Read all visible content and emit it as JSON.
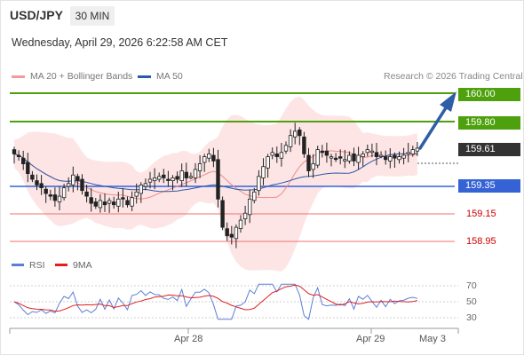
{
  "header": {
    "pair": "USD/JPY",
    "timeframe": "30 MIN",
    "timestamp": "Wednesday, April 29, 2026 6:22:58 AM CET"
  },
  "legend": {
    "ma20": "MA 20 + Bollinger Bands",
    "ma50": "MA 50",
    "credit": "Research © 2026 Trading Central"
  },
  "colors": {
    "bollinger_fill": "#fde0e0",
    "ma20": "#f08a8a",
    "ma50": "#2a5aa8",
    "resistance": "#4ea10c",
    "support_strong": "#3563d6",
    "support": "#f07272",
    "current": "#333333",
    "arrow": "#2e5ea5",
    "rsi": "#5b7ed6",
    "rsi_ma": "#e02020"
  },
  "levels": {
    "r2": "160.00",
    "r1": "159.80",
    "current": "159.61",
    "s1": "159.35",
    "s2": "159.15",
    "s3": "158.95"
  },
  "rsi": {
    "label": "RSI",
    "ma_label": "9MA",
    "ticks": [
      "70",
      "50",
      "30"
    ]
  },
  "x_axis": {
    "labels": [
      "Apr 28",
      "Apr 29",
      "May 3"
    ]
  },
  "chart_data": {
    "type": "candlestick",
    "instrument": "USD/JPY",
    "interval": "30 MIN",
    "y_levels": [
      160.0,
      159.8,
      159.61,
      159.35,
      159.15,
      158.95
    ],
    "current_price": 159.61,
    "x_labels": [
      "Apr 28",
      "Apr 29",
      "May 3"
    ],
    "rsi_ticks": [
      70,
      50,
      30
    ],
    "close_series": [
      159.57,
      159.55,
      159.5,
      159.43,
      159.39,
      159.35,
      159.33,
      159.29,
      159.27,
      159.24,
      159.27,
      159.33,
      159.36,
      159.42,
      159.38,
      159.31,
      159.27,
      159.22,
      159.2,
      159.24,
      159.21,
      159.24,
      159.21,
      159.25,
      159.25,
      159.21,
      159.26,
      159.3,
      159.35,
      159.36,
      159.39,
      159.4,
      159.41,
      159.4,
      159.39,
      159.4,
      159.39,
      159.45,
      159.4,
      159.41,
      159.46,
      159.5,
      159.55,
      159.57,
      159.52,
      159.25,
      159.05,
      158.99,
      158.98,
      159.05,
      159.1,
      159.15,
      159.25,
      159.3,
      159.41,
      159.48,
      159.55,
      159.58,
      159.55,
      159.58,
      159.63,
      159.7,
      159.73,
      159.7,
      159.57,
      159.45,
      159.5,
      159.6,
      159.58,
      159.56,
      159.55,
      159.54,
      159.54,
      159.53,
      159.56,
      159.52,
      159.56,
      159.57,
      159.6,
      159.59,
      159.55,
      159.56,
      159.53,
      159.55,
      159.54,
      159.55,
      159.56,
      159.58,
      159.6,
      159.61
    ]
  }
}
